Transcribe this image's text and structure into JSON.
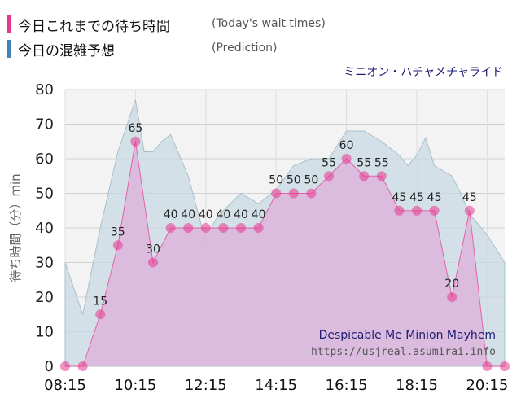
{
  "legend": {
    "today_jp": "今日これまでの待ち時間",
    "today_en": "(Today's wait times)",
    "pred_jp": "今日の混雑予想",
    "pred_en": "(Prediction)"
  },
  "ride_name_jp": "ミニオン・ハチャメチャライド",
  "colors": {
    "today": "#e8368f",
    "today_fill": "#dcb4dc",
    "prediction": "#4682b4",
    "prediction_fill": "#c9d9e3",
    "ride_en": "#1d1d73",
    "plot_bg": "#f3f3f3"
  },
  "chart_data": {
    "type": "area",
    "ylabel": "待ち時間（分）min",
    "ylim": [
      0,
      80
    ],
    "yticks": [
      0,
      10,
      20,
      30,
      40,
      50,
      60,
      70,
      80
    ],
    "xticks": [
      "08:15",
      "10:15",
      "12:15",
      "14:15",
      "16:15",
      "18:15",
      "20:15"
    ],
    "xlim": [
      "08:15",
      "20:45"
    ],
    "annotation_title": "Despicable Me Minion Mayhem",
    "annotation_url": "https://usjreal.asumirai.info",
    "series": [
      {
        "name": "今日これまでの待ち時間",
        "times": [
          "08:15",
          "08:45",
          "09:15",
          "09:45",
          "10:15",
          "10:45",
          "11:15",
          "11:45",
          "12:15",
          "12:45",
          "13:15",
          "13:45",
          "14:15",
          "14:45",
          "15:15",
          "15:45",
          "16:15",
          "16:45",
          "17:15",
          "17:45",
          "18:15",
          "18:45",
          "19:15",
          "19:45",
          "20:15",
          "20:45"
        ],
        "values": [
          0,
          0,
          15,
          35,
          65,
          30,
          40,
          40,
          40,
          40,
          40,
          40,
          50,
          50,
          50,
          55,
          60,
          55,
          55,
          45,
          45,
          45,
          20,
          45,
          0,
          0
        ]
      },
      {
        "name": "今日の混雑予想",
        "times": [
          "08:15",
          "08:45",
          "09:15",
          "09:45",
          "10:15",
          "10:30",
          "10:45",
          "11:00",
          "11:15",
          "11:45",
          "12:15",
          "12:30",
          "12:45",
          "13:15",
          "13:45",
          "14:15",
          "14:45",
          "15:15",
          "15:45",
          "16:15",
          "16:45",
          "17:15",
          "17:45",
          "18:00",
          "18:15",
          "18:30",
          "18:45",
          "19:15",
          "19:30",
          "19:45",
          "20:15",
          "20:45"
        ],
        "values": [
          30,
          15,
          40,
          62,
          77,
          62,
          62,
          65,
          67,
          55,
          36,
          42,
          45,
          50,
          47,
          51,
          58,
          60,
          60,
          68,
          68,
          65,
          61,
          58,
          61,
          66,
          58,
          55,
          50,
          44,
          38,
          30
        ]
      }
    ]
  }
}
